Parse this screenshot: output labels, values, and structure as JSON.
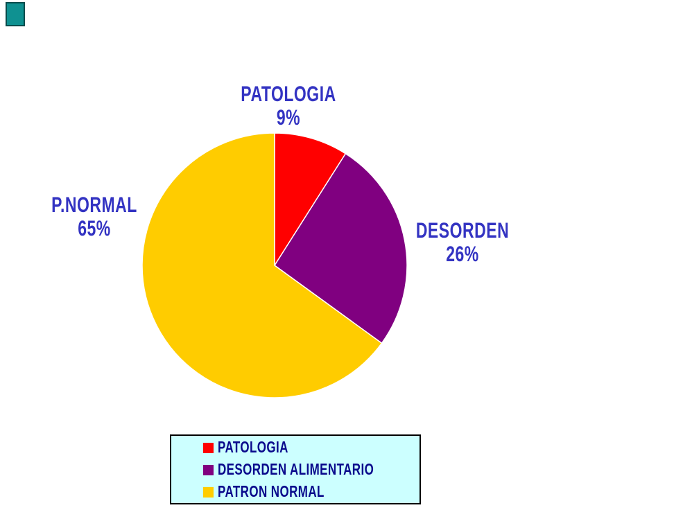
{
  "page": {
    "background_color": "#FFFFFF"
  },
  "decoration": {
    "corner_rect_fill": "#0F9191",
    "corner_rect_border": "#074C4C"
  },
  "chart_data": {
    "type": "pie",
    "start_angle": "12 o'clock, clockwise",
    "slices": [
      {
        "label": "PATOLOGIA",
        "value": 9,
        "value_label": "9%",
        "color": "#FF0000"
      },
      {
        "label": "DESORDEN",
        "value": 26,
        "value_label": "26%",
        "color": "#800080"
      },
      {
        "label": "P.NORMAL",
        "value": 65,
        "value_label": "65%",
        "color": "#FFCC00"
      }
    ],
    "label_color": "#3333C2",
    "separator_color": "#FFFFFF",
    "legend_position": "bottom"
  },
  "legend": {
    "background": "#CCFFFF",
    "border_color": "#000000",
    "text_color": "#0A0A8C",
    "items": [
      {
        "label": "PATOLOGIA",
        "color": "#FF0000"
      },
      {
        "label": "DESORDEN ALIMENTARIO",
        "color": "#800080"
      },
      {
        "label": "PATRON NORMAL",
        "color": "#FFCC00"
      }
    ]
  }
}
